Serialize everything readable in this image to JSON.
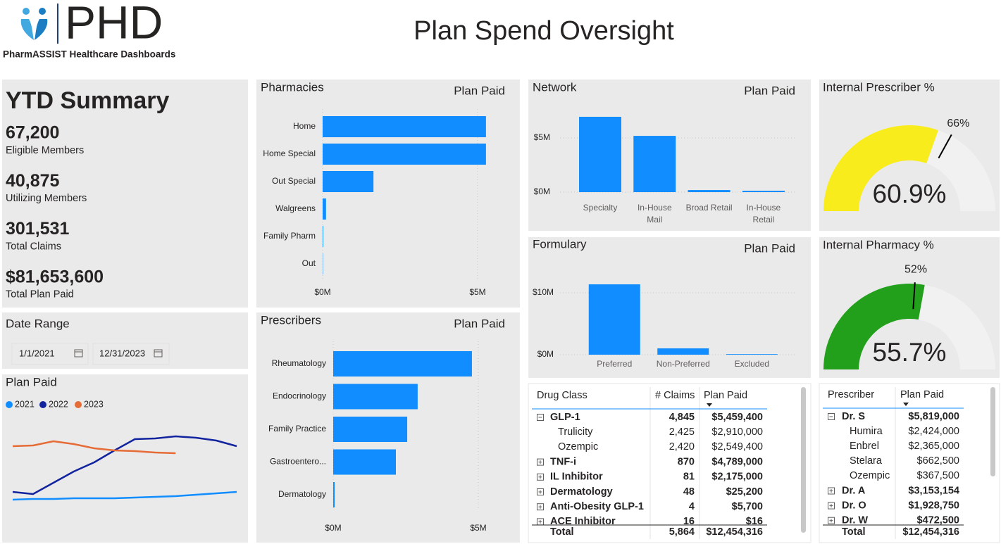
{
  "header": {
    "logo_text": "PHD",
    "logo_subtitle": "PharmASSIST Healthcare Dashboards",
    "title": "Plan Spend Oversight"
  },
  "ytd_summary": {
    "title": "YTD Summary",
    "items": [
      {
        "value": "67,200",
        "label": "Eligible Members"
      },
      {
        "value": "40,875",
        "label": "Utilizing Members"
      },
      {
        "value": "301,531",
        "label": "Total Claims"
      },
      {
        "value": "$81,653,600",
        "label": "Total Plan Paid"
      }
    ]
  },
  "date_range": {
    "title": "Date Range",
    "start": "1/1/2021",
    "end": "12/31/2023"
  },
  "plan_paid_trend": {
    "type": "line",
    "title": "Plan Paid",
    "ylim": [
      0,
      1300000
    ],
    "series": [
      {
        "name": "2021",
        "color": "#118DFF",
        "values": [
          200000,
          210000,
          210000,
          220000,
          220000,
          220000,
          230000,
          240000,
          250000,
          270000,
          290000,
          310000
        ]
      },
      {
        "name": "2022",
        "color": "#12239E",
        "values": [
          310000,
          280000,
          440000,
          600000,
          730000,
          900000,
          1060000,
          1070000,
          1100000,
          1080000,
          1040000,
          960000
        ]
      },
      {
        "name": "2023",
        "color": "#E66C37",
        "values": [
          960000,
          970000,
          1030000,
          990000,
          930000,
          900000,
          890000,
          870000,
          860000,
          null,
          null,
          null
        ]
      }
    ]
  },
  "pharmacies": {
    "type": "hbar",
    "title": "Pharmacies",
    "measure": "Plan Paid",
    "categories": [
      "Home",
      "Home Special",
      "Out Special",
      "Walgreens",
      "Family Pharm",
      "Out"
    ],
    "values": [
      5270000,
      5270000,
      1640000,
      110000,
      20000,
      10000
    ],
    "color": "#118DFF",
    "xlim": [
      0,
      5500000
    ],
    "xticks": [
      {
        "value": 0,
        "label": "$0M"
      },
      {
        "value": 5000000,
        "label": "$5M"
      }
    ],
    "grid": true
  },
  "prescribers": {
    "type": "hbar",
    "title": "Prescribers",
    "measure": "Plan Paid",
    "categories": [
      "Rheumatology",
      "Endocrinology",
      "Family Practice",
      "Gastroentero...",
      "Dermatology"
    ],
    "values": [
      4780000,
      2910000,
      2550000,
      2160000,
      50000
    ],
    "color": "#118DFF",
    "xlim": [
      0,
      5500000
    ],
    "xticks": [
      {
        "value": 0,
        "label": "$0M"
      },
      {
        "value": 5000000,
        "label": "$5M"
      }
    ],
    "grid": true
  },
  "network": {
    "type": "bar",
    "title": "Network",
    "measure": "Plan Paid",
    "categories": [
      "Specialty",
      "In-House Mail",
      "Broad Retail",
      "In-House Retail"
    ],
    "values": [
      6950000,
      5190000,
      190000,
      130000
    ],
    "color": "#118DFF",
    "ylim": [
      0,
      8000000
    ],
    "yticks": [
      {
        "value": 0,
        "label": "$0M"
      },
      {
        "value": 5000000,
        "label": "$5M"
      }
    ],
    "grid": true
  },
  "formulary": {
    "type": "bar",
    "title": "Formulary",
    "measure": "Plan Paid",
    "categories": [
      "Preferred",
      "Non-Preferred",
      "Excluded"
    ],
    "values": [
      11360000,
      1020000,
      100000
    ],
    "color": "#118DFF",
    "ylim": [
      0,
      12500000
    ],
    "yticks": [
      {
        "value": 0,
        "label": "$0M"
      },
      {
        "value": 10000000,
        "label": "$10M"
      }
    ],
    "grid": true
  },
  "gauges": [
    {
      "type": "gauge",
      "title": "Internal Prescriber %",
      "value": 60.9,
      "value_label": "60.9%",
      "target": 66,
      "target_label": "66%",
      "lim": [
        0,
        100
      ],
      "color": "#F8EC1C"
    },
    {
      "type": "gauge",
      "title": "Internal Pharmacy %",
      "value": 55.7,
      "value_label": "55.7%",
      "target": 52,
      "target_label": "52%",
      "lim": [
        0,
        100
      ],
      "color": "#22A01C"
    }
  ],
  "drug_class_table": {
    "columns": [
      "Drug Class",
      "# Claims",
      "Plan Paid"
    ],
    "sort_column": 2,
    "rows": [
      {
        "cells": [
          "GLP-1",
          "4,845",
          "$5,459,400"
        ],
        "level": 0,
        "expanded": true
      },
      {
        "cells": [
          "Trulicity",
          "2,425",
          "$2,910,000"
        ],
        "level": 1
      },
      {
        "cells": [
          "Ozempic",
          "2,420",
          "$2,549,400"
        ],
        "level": 1
      },
      {
        "cells": [
          "TNF-i",
          "870",
          "$4,789,000"
        ],
        "level": 0,
        "expanded": false
      },
      {
        "cells": [
          "IL Inhibitor",
          "81",
          "$2,175,000"
        ],
        "level": 0,
        "expanded": false
      },
      {
        "cells": [
          "Dermatology",
          "48",
          "$25,200"
        ],
        "level": 0,
        "expanded": false
      },
      {
        "cells": [
          "Anti-Obesity GLP-1",
          "4",
          "$5,700"
        ],
        "level": 0,
        "expanded": false
      },
      {
        "cells": [
          "ACE Inhibitor",
          "16",
          "$16"
        ],
        "level": 0,
        "expanded": false
      }
    ],
    "total": [
      "Total",
      "5,864",
      "$12,454,316"
    ]
  },
  "prescriber_table": {
    "columns": [
      "Prescriber",
      "Plan Paid"
    ],
    "sort_column": 1,
    "rows": [
      {
        "cells": [
          "Dr. S",
          "$5,819,000"
        ],
        "level": 0,
        "expanded": true
      },
      {
        "cells": [
          "Humira",
          "$2,424,000"
        ],
        "level": 1
      },
      {
        "cells": [
          "Enbrel",
          "$2,365,000"
        ],
        "level": 1
      },
      {
        "cells": [
          "Stelara",
          "$662,500"
        ],
        "level": 1
      },
      {
        "cells": [
          "Ozempic",
          "$367,500"
        ],
        "level": 1
      },
      {
        "cells": [
          "Dr. A",
          "$3,153,154"
        ],
        "level": 0,
        "expanded": false
      },
      {
        "cells": [
          "Dr. O",
          "$1,928,750"
        ],
        "level": 0,
        "expanded": false
      },
      {
        "cells": [
          "Dr. W",
          "$472,500"
        ],
        "level": 0,
        "expanded": false
      }
    ],
    "total": [
      "Total",
      "$12,454,316"
    ]
  }
}
